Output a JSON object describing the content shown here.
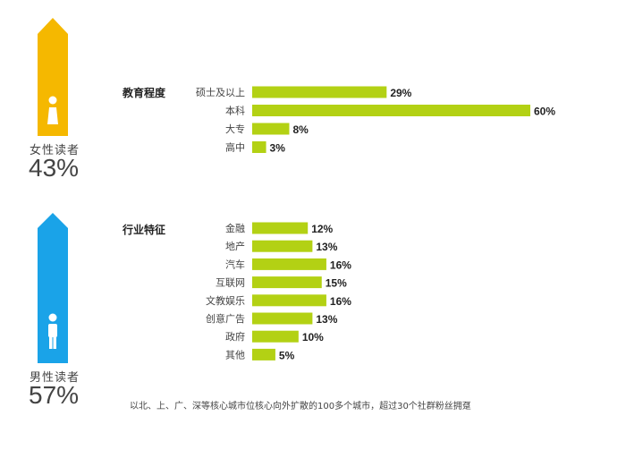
{
  "colors": {
    "female": "#f5b800",
    "male": "#1aa3e8",
    "bar": "#b3d114"
  },
  "female": {
    "label": "女性读者",
    "percent": "43%",
    "icon": "female-person-icon"
  },
  "male": {
    "label": "男性读者",
    "percent": "57%",
    "icon": "male-person-icon"
  },
  "footnote": "以北、上、广、深等核心城市位核心向外扩散的100多个城市，超过30个社群粉丝拥趸",
  "chart_data": [
    {
      "type": "bar",
      "orientation": "horizontal",
      "title": "教育程度",
      "categories": [
        "硕士及以上",
        "本科",
        "大专",
        "高中"
      ],
      "values": [
        29,
        60,
        8,
        3
      ],
      "value_labels": [
        "29%",
        "60%",
        "8%",
        "3%"
      ],
      "unit": "%"
    },
    {
      "type": "bar",
      "orientation": "horizontal",
      "title": "行业特征",
      "categories": [
        "金融",
        "地产",
        "汽车",
        "互联网",
        "文教娱乐",
        "创意广告",
        "政府",
        "其他"
      ],
      "values": [
        12,
        13,
        16,
        15,
        16,
        13,
        10,
        5
      ],
      "value_labels": [
        "12%",
        "13%",
        "16%",
        "15%",
        "16%",
        "13%",
        "10%",
        "5%"
      ],
      "unit": "%"
    }
  ]
}
